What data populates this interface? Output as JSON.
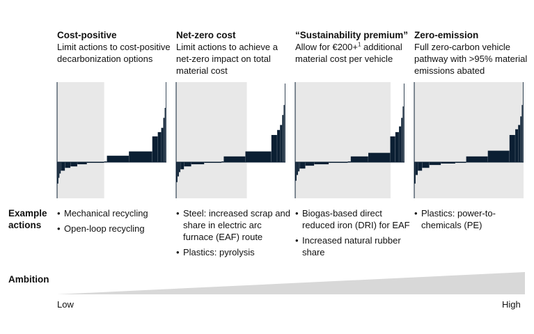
{
  "chart_data": {
    "type": "bar",
    "scenarios": [
      {
        "title": "Cost-positive",
        "description": "Limit actions to cost-positive decarbonization options",
        "example_actions": [
          "Mechanical recycling",
          "Open-loop recycling"
        ],
        "shaded_region": "cost-negative",
        "bars": [
          {
            "width": 2,
            "value": -30
          },
          {
            "width": 1.5,
            "value": -22
          },
          {
            "width": 2,
            "value": -16
          },
          {
            "width": 6,
            "value": -12
          },
          {
            "width": 8,
            "value": -8
          },
          {
            "width": 10,
            "value": -6
          },
          {
            "width": 14,
            "value": -3
          },
          {
            "width": 25,
            "value": -1
          },
          {
            "width": 4,
            "value": 1
          },
          {
            "width": 32,
            "value": 9
          },
          {
            "width": 34,
            "value": 15
          },
          {
            "width": 8,
            "value": 36
          },
          {
            "width": 5,
            "value": 42
          },
          {
            "width": 3,
            "value": 48
          },
          {
            "width": 2,
            "value": 62
          },
          {
            "width": 1.5,
            "value": 76
          },
          {
            "width": 1,
            "value": 112
          }
        ]
      },
      {
        "title": "Net-zero cost",
        "description": "Limit actions to achieve a net-zero impact on total material cost",
        "example_actions": [
          "Steel: increased scrap and share in electric arc furnace (EAF) route",
          "Plastics: pyrolysis"
        ],
        "shaded_region": "net-zero",
        "bars": [
          {
            "width": 2,
            "value": -28
          },
          {
            "width": 2,
            "value": -20
          },
          {
            "width": 2,
            "value": -14
          },
          {
            "width": 5,
            "value": -10
          },
          {
            "width": 10,
            "value": -6
          },
          {
            "width": 18,
            "value": -3
          },
          {
            "width": 24,
            "value": -1
          },
          {
            "width": 3,
            "value": 1
          },
          {
            "width": 30,
            "value": 8
          },
          {
            "width": 36,
            "value": 15
          },
          {
            "width": 8,
            "value": 38
          },
          {
            "width": 4,
            "value": 45
          },
          {
            "width": 3,
            "value": 52
          },
          {
            "width": 2,
            "value": 66
          },
          {
            "width": 1.5,
            "value": 80
          },
          {
            "width": 1,
            "value": 110
          }
        ]
      },
      {
        "title": "“Sustainability premium”",
        "description": "Allow for €200+ additional material cost per vehicle",
        "footnote_marker": "1",
        "example_actions": [
          "Biogas-based direct reduced iron (DRI) for EAF",
          "Increased natural rubber share"
        ],
        "shaded_region": "up-to-premium",
        "bars": [
          {
            "width": 2,
            "value": -26
          },
          {
            "width": 2,
            "value": -18
          },
          {
            "width": 2,
            "value": -13
          },
          {
            "width": 8,
            "value": -9
          },
          {
            "width": 12,
            "value": -5
          },
          {
            "width": 20,
            "value": -3
          },
          {
            "width": 26,
            "value": -1
          },
          {
            "width": 4,
            "value": 1
          },
          {
            "width": 24,
            "value": 8
          },
          {
            "width": 30,
            "value": 13
          },
          {
            "width": 7,
            "value": 36
          },
          {
            "width": 5,
            "value": 42
          },
          {
            "width": 3,
            "value": 50
          },
          {
            "width": 2,
            "value": 62
          },
          {
            "width": 1.5,
            "value": 78
          },
          {
            "width": 1,
            "value": 110
          }
        ]
      },
      {
        "title": "Zero-emission",
        "description": "Full zero-carbon vehicle pathway with >95% material emissions abated",
        "example_actions": [
          "Plastics: power-to-chemicals (PE)"
        ],
        "shaded_region": "all",
        "bars": [
          {
            "width": 2,
            "value": -30
          },
          {
            "width": 3,
            "value": -18
          },
          {
            "width": 6,
            "value": -12
          },
          {
            "width": 10,
            "value": -8
          },
          {
            "width": 16,
            "value": -4
          },
          {
            "width": 20,
            "value": -2
          },
          {
            "width": 15,
            "value": -1
          },
          {
            "width": 30,
            "value": 8
          },
          {
            "width": 30,
            "value": 16
          },
          {
            "width": 8,
            "value": 38
          },
          {
            "width": 4,
            "value": 46
          },
          {
            "width": 3,
            "value": 52
          },
          {
            "width": 2,
            "value": 64
          },
          {
            "width": 1.5,
            "value": 80
          },
          {
            "width": 1,
            "value": 112
          }
        ]
      }
    ],
    "row_labels": {
      "example": "Example\nactions",
      "ambition": "Ambition"
    },
    "ambition_scale": {
      "low": "Low",
      "high": "High"
    },
    "colors": {
      "bar": "#0b1f33",
      "shade": "#e8e8e8",
      "wedge": "#d8d8d8",
      "axis": "#0b1f33"
    }
  }
}
